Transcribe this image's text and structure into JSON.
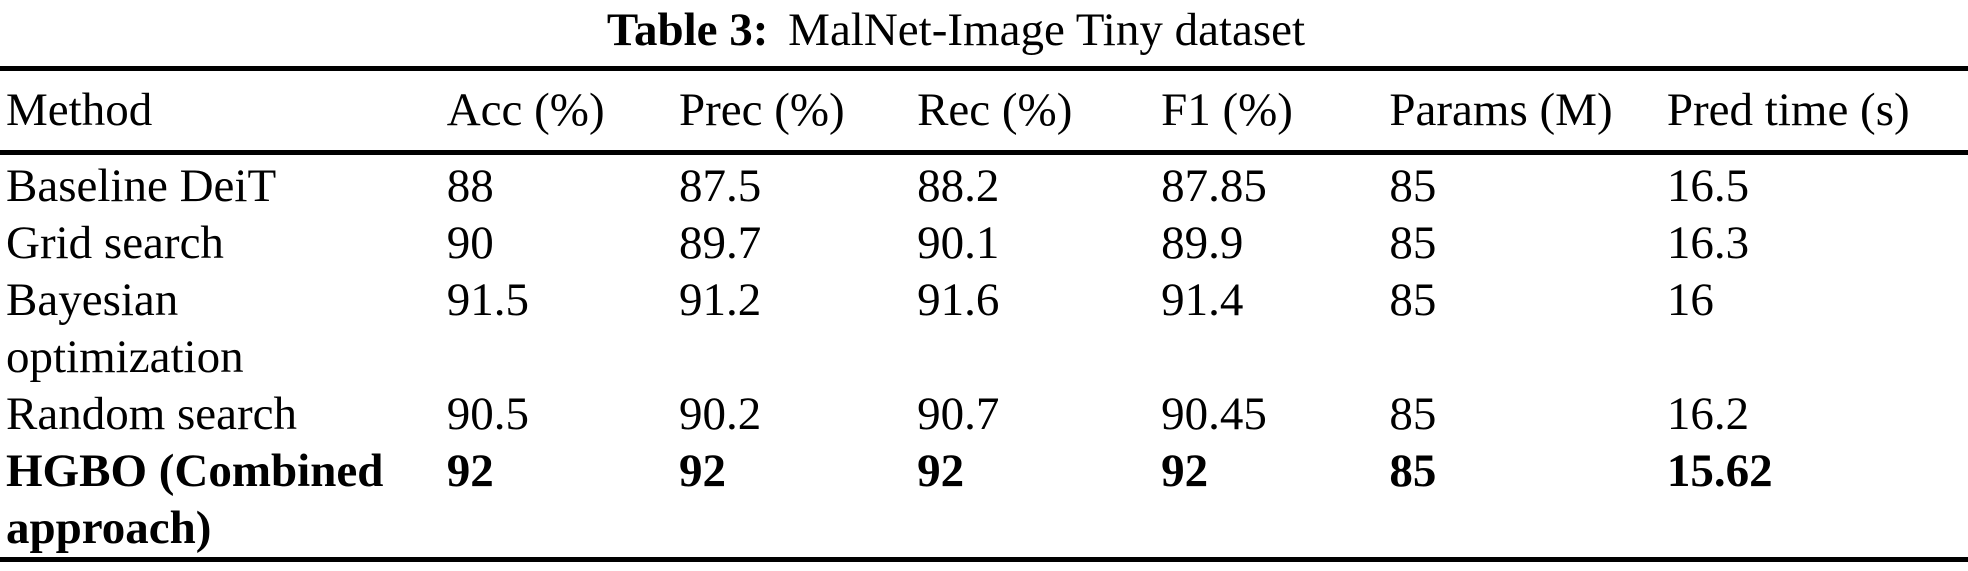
{
  "page": {
    "background": "#ffffff",
    "text_color": "#000000",
    "rule_color": "#000000"
  },
  "caption": {
    "label": "Table 3:",
    "text": "MalNet-Image Tiny dataset"
  },
  "table": {
    "columns": [
      "Method",
      "Acc (%)",
      "Prec (%)",
      "Rec (%)",
      "F1 (%)",
      "Params (M)",
      "Pred time (s)"
    ],
    "rows": [
      {
        "method": "Baseline DeiT",
        "values": [
          "88",
          "87.5",
          "88.2",
          "87.85",
          "85",
          "16.5"
        ],
        "bold": false
      },
      {
        "method": "Grid search",
        "values": [
          "90",
          "89.7",
          "90.1",
          "89.9",
          "85",
          "16.3"
        ],
        "bold": false
      },
      {
        "method": "Bayesian optimization",
        "values": [
          "91.5",
          "91.2",
          "91.6",
          "91.4",
          "85",
          "16"
        ],
        "bold": false
      },
      {
        "method": "Random search",
        "values": [
          "90.5",
          "90.2",
          "90.7",
          "90.45",
          "85",
          "16.2"
        ],
        "bold": false
      },
      {
        "method": "HGBO (Combined approach)",
        "values": [
          "92",
          "92",
          "92",
          "92",
          "85",
          "15.62"
        ],
        "bold": true
      }
    ]
  }
}
